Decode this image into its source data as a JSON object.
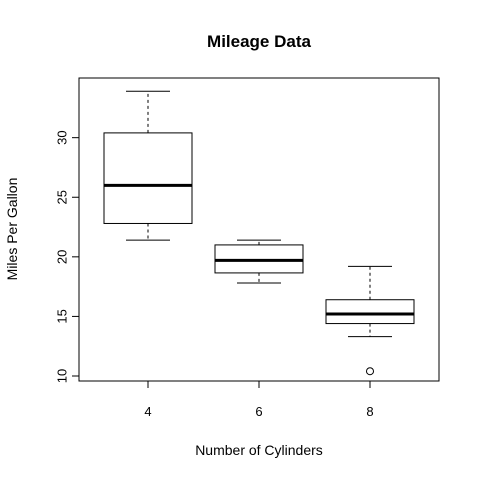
{
  "chart_data": {
    "type": "boxplot",
    "title": "Mileage Data",
    "xlabel": "Number of Cylinders",
    "ylabel": "Miles Per Gallon",
    "categories": [
      "4",
      "6",
      "8"
    ],
    "ylim": [
      10,
      34
    ],
    "yticks": [
      "10",
      "15",
      "20",
      "25",
      "30"
    ],
    "boxes": [
      {
        "category": "4",
        "whisker_low": 21.4,
        "q1": 22.8,
        "median": 26.0,
        "q3": 30.4,
        "whisker_high": 33.9,
        "outliers": []
      },
      {
        "category": "6",
        "whisker_low": 17.8,
        "q1": 18.65,
        "median": 19.7,
        "q3": 21.0,
        "whisker_high": 21.4,
        "outliers": []
      },
      {
        "category": "8",
        "whisker_low": 13.3,
        "q1": 14.4,
        "median": 15.2,
        "q3": 16.4,
        "whisker_high": 19.2,
        "outliers": [
          10.4
        ]
      }
    ],
    "grid": false,
    "colors": {
      "box_fill": "#ffffff",
      "stroke": "#000000"
    }
  }
}
